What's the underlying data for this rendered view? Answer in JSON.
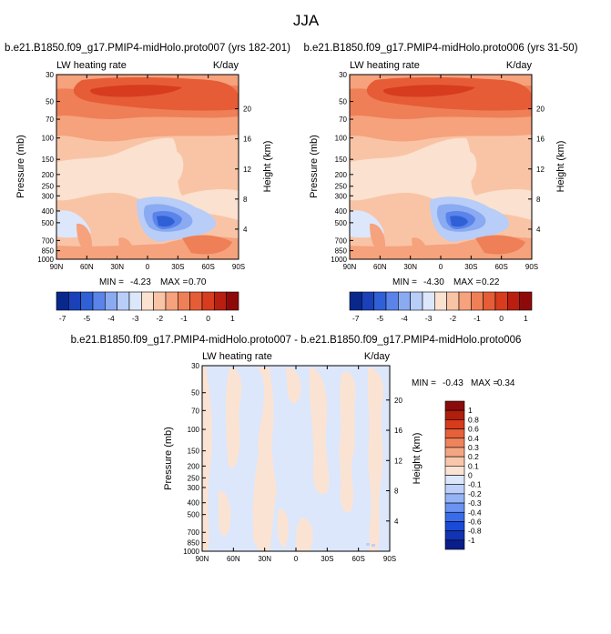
{
  "figure": {
    "title": "JJA"
  },
  "colors": {
    "full_palette": [
      "#08288c",
      "#1a41b8",
      "#3060d6",
      "#5a84ea",
      "#8aaaf2",
      "#b8cdf7",
      "#dce7fb",
      "#fbe1cf",
      "#f9c4a6",
      "#f5a27d",
      "#ef7f56",
      "#e65c36",
      "#d73c1e",
      "#b81f10",
      "#8e0a0a"
    ],
    "diff_palette": [
      "#0a1d8a",
      "#1233b4",
      "#1a4bd6",
      "#3a6ce9",
      "#6a93f2",
      "#95b4f6",
      "#bcd0f9",
      "#dce7fb",
      "#fbe3d3",
      "#f8c6ab",
      "#f4a683",
      "#ee845d",
      "#e66039",
      "#d63b1c",
      "#b01e0c",
      "#8a0b0b"
    ]
  },
  "chart_data": [
    {
      "type": "heatmap",
      "title": "b.e21.B1850.f09_g17.PMIP4-midHolo.proto007 (yrs 182-201)",
      "left_label": "LW heating rate",
      "right_label": "K/day",
      "xlabel": "",
      "ylabel": "Pressure (mb)",
      "y2label": "Height (km)",
      "x_ticks": [
        "90N",
        "60N",
        "30N",
        "0",
        "30S",
        "60S",
        "90S"
      ],
      "y_ticks": [
        30,
        50,
        70,
        100,
        150,
        200,
        250,
        300,
        400,
        500,
        700,
        850,
        1000
      ],
      "y2_ticks": [
        20,
        16,
        12,
        8,
        4
      ],
      "ylim": [
        30,
        1000
      ],
      "stats": {
        "min_label": "MIN =",
        "min": "-4.23",
        "max_label": "MAX =",
        "max": "0.70"
      },
      "colorbar_labels": [
        "-7",
        "-5",
        "-4",
        "-3",
        "-2",
        "-1",
        "0",
        "1"
      ]
    },
    {
      "type": "heatmap",
      "title": "b.e21.B1850.f09_g17.PMIP4-midHolo.proto006 (yrs 31-50)",
      "left_label": "LW heating rate",
      "right_label": "K/day",
      "xlabel": "",
      "ylabel": "Pressure (mb)",
      "y2label": "Height (km)",
      "x_ticks": [
        "90N",
        "60N",
        "30N",
        "0",
        "30S",
        "60S",
        "90S"
      ],
      "y_ticks": [
        30,
        50,
        70,
        100,
        150,
        200,
        250,
        300,
        400,
        500,
        700,
        850,
        1000
      ],
      "y2_ticks": [
        20,
        16,
        12,
        8,
        4
      ],
      "ylim": [
        30,
        1000
      ],
      "stats": {
        "min_label": "MIN =",
        "min": "-4.30",
        "max_label": "MAX =",
        "max": "0.22"
      },
      "colorbar_labels": [
        "-7",
        "-5",
        "-4",
        "-3",
        "-2",
        "-1",
        "0",
        "1"
      ]
    },
    {
      "type": "heatmap",
      "title": "b.e21.B1850.f09_g17.PMIP4-midHolo.proto007 - b.e21.B1850.f09_g17.PMIP4-midHolo.proto006",
      "left_label": "LW heating rate",
      "right_label": "K/day",
      "xlabel": "",
      "ylabel": "Pressure (mb)",
      "y2label": "Height (km)",
      "x_ticks": [
        "90N",
        "60N",
        "30N",
        "0",
        "30S",
        "60S",
        "90S"
      ],
      "y_ticks": [
        30,
        50,
        70,
        100,
        150,
        200,
        250,
        300,
        400,
        500,
        700,
        850,
        1000
      ],
      "y2_ticks": [
        20,
        16,
        12,
        8,
        4
      ],
      "ylim": [
        30,
        1000
      ],
      "stats": {
        "min_label": "MIN =",
        "min": "-0.43",
        "max_label": "MAX =",
        "max": "0.34"
      },
      "colorbar_labels": [
        "1",
        "0.8",
        "0.6",
        "0.4",
        "0.3",
        "0.2",
        "0.1",
        "0",
        "-0.1",
        "-0.2",
        "-0.3",
        "-0.4",
        "-0.6",
        "-0.8",
        "-1"
      ]
    }
  ]
}
